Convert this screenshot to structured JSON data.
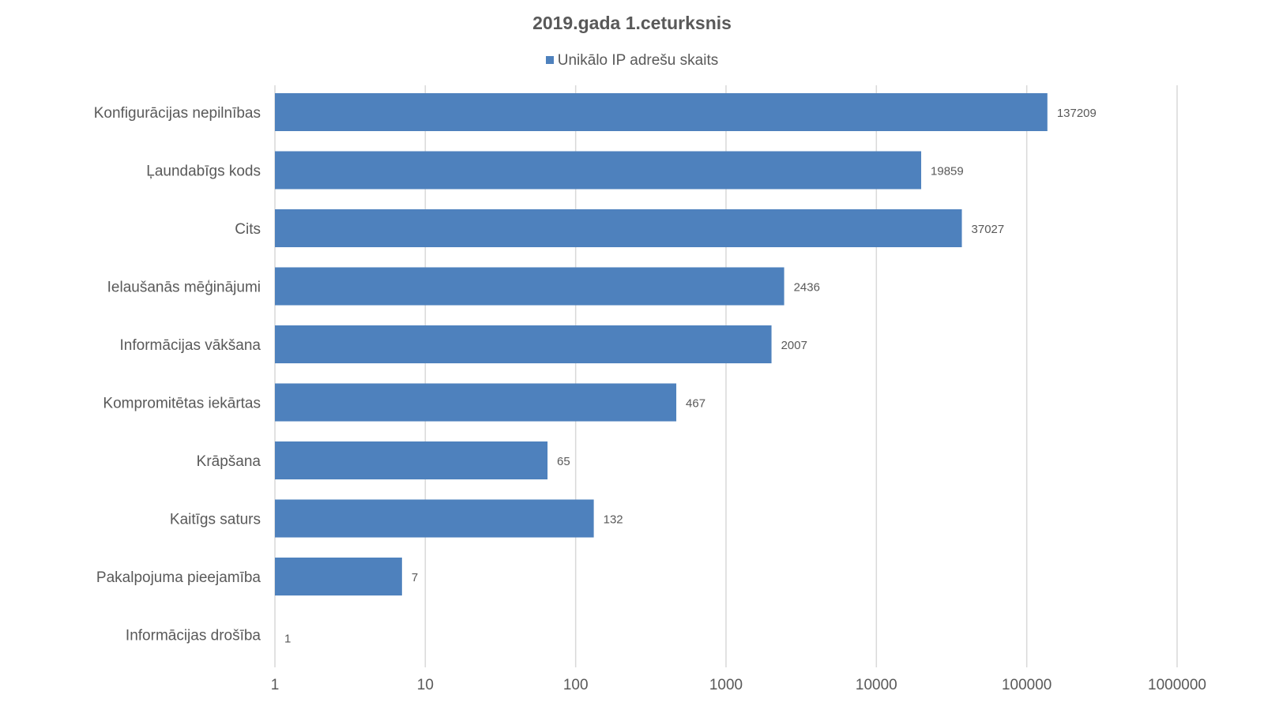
{
  "chart_data": {
    "type": "bar",
    "orientation": "horizontal",
    "title": "2019.gada 1.ceturksnis",
    "legend": {
      "position": "top",
      "entries": [
        "Unikālo IP adrešu skaits"
      ]
    },
    "series": [
      {
        "name": "Unikālo IP adrešu skaits",
        "color": "#4e81bd",
        "values": [
          137209,
          19859,
          37027,
          2436,
          2007,
          467,
          65,
          132,
          7,
          1
        ]
      }
    ],
    "categories": [
      "Konfigurācijas nepilnības",
      "Ļaundabīgs kods",
      "Cits",
      "Ielaušanās mēģinājumi",
      "Informācijas vākšana",
      "Kompromitētas iekārtas",
      "Krāpšana",
      "Kaitīgs saturs",
      "Pakalpojuma pieejamība",
      "Informācijas drošība"
    ],
    "x_axis": {
      "scale": "log",
      "xlim": [
        1,
        1000000
      ],
      "ticks": [
        "1",
        "10",
        "100",
        "1000",
        "10000",
        "100000",
        "1000000"
      ]
    },
    "grid": "vertical",
    "data_labels": true,
    "colors": {
      "bar": "#4e81bd",
      "grid": "#d9d9d9",
      "text": "#595959"
    }
  }
}
